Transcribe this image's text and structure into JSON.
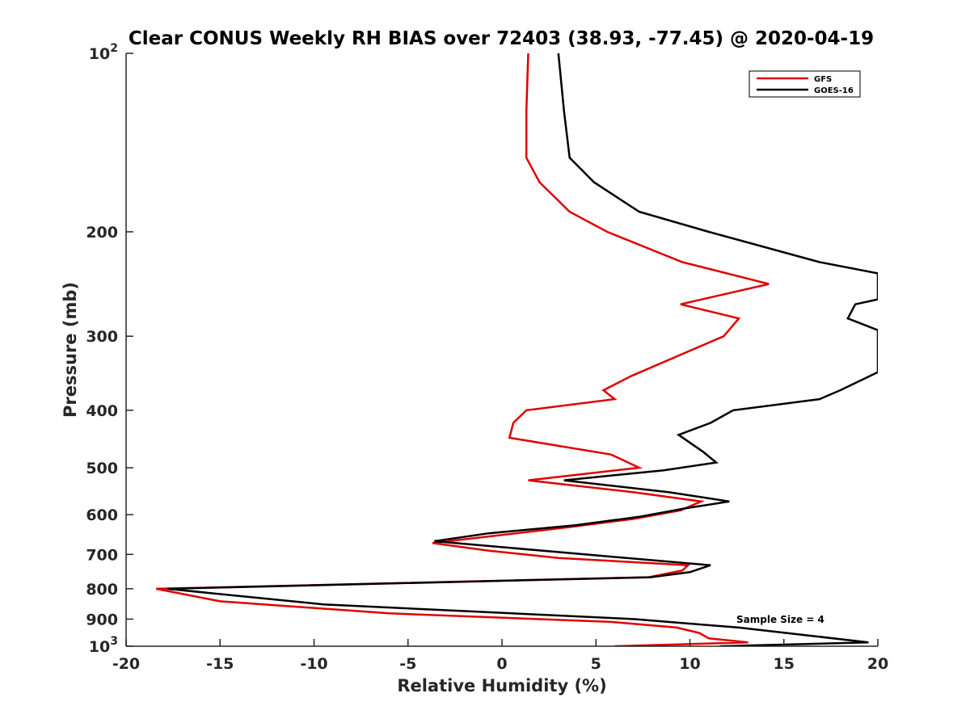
{
  "chart_data": {
    "type": "line",
    "title": "Clear CONUS Weekly RH BIAS over 72403 (38.93, -77.45) @ 2020-04-19",
    "xlabel": "Relative Humidity (%)",
    "ylabel": "Pressure (mb)",
    "xlim": [
      -20,
      20
    ],
    "ylim": [
      100,
      1000
    ],
    "y_scale": "log",
    "y_reversed": true,
    "x_ticks": [
      -20,
      -15,
      -10,
      -5,
      0,
      5,
      10,
      15,
      20
    ],
    "x_tick_labels": [
      "-20",
      "-15",
      "-10",
      "-5",
      "0",
      "5",
      "10",
      "15",
      "20"
    ],
    "y_ticks": [
      100,
      200,
      300,
      400,
      500,
      600,
      700,
      800,
      900,
      1000
    ],
    "y_tick_labels": [
      {
        "base": "10",
        "exp": "2"
      },
      {
        "base": "200",
        "exp": ""
      },
      {
        "base": "300",
        "exp": ""
      },
      {
        "base": "400",
        "exp": ""
      },
      {
        "base": "500",
        "exp": ""
      },
      {
        "base": "600",
        "exp": ""
      },
      {
        "base": "700",
        "exp": ""
      },
      {
        "base": "800",
        "exp": ""
      },
      {
        "base": "900",
        "exp": ""
      },
      {
        "base": "10",
        "exp": "3"
      }
    ],
    "grid": false,
    "legend_position": "top-right",
    "annotation": "Sample Size = 4",
    "series": [
      {
        "name": "GFS",
        "color": "#e00000",
        "points": [
          [
            1.4,
            100
          ],
          [
            1.3,
            125
          ],
          [
            1.3,
            150
          ],
          [
            2.0,
            165
          ],
          [
            3.6,
            185
          ],
          [
            5.6,
            200
          ],
          [
            9.6,
            225
          ],
          [
            14.2,
            245
          ],
          [
            9.5,
            265
          ],
          [
            12.6,
            280
          ],
          [
            11.8,
            300
          ],
          [
            6.9,
            350
          ],
          [
            5.4,
            370
          ],
          [
            6.0,
            383
          ],
          [
            1.3,
            400
          ],
          [
            0.6,
            420
          ],
          [
            0.4,
            445
          ],
          [
            5.8,
            475
          ],
          [
            7.3,
            500
          ],
          [
            1.4,
            525
          ],
          [
            7.0,
            550
          ],
          [
            10.6,
            570
          ],
          [
            9.5,
            590
          ],
          [
            7.0,
            610
          ],
          [
            3.5,
            630
          ],
          [
            -3.7,
            670
          ],
          [
            -0.7,
            690
          ],
          [
            3.0,
            710
          ],
          [
            9.9,
            730
          ],
          [
            9.6,
            745
          ],
          [
            7.8,
            765
          ],
          [
            -18.4,
            800
          ],
          [
            -15.0,
            840
          ],
          [
            -6.0,
            880
          ],
          [
            5.8,
            910
          ],
          [
            9.3,
            930
          ],
          [
            10.5,
            950
          ],
          [
            11.0,
            970
          ],
          [
            13.1,
            985
          ],
          [
            6.0,
            1000
          ]
        ]
      },
      {
        "name": "GOES-16",
        "color": "#000000",
        "points": [
          [
            3.0,
            100
          ],
          [
            3.3,
            125
          ],
          [
            3.6,
            150
          ],
          [
            4.9,
            165
          ],
          [
            7.3,
            185
          ],
          [
            11.0,
            200
          ],
          [
            16.9,
            225
          ],
          [
            20.0,
            235
          ],
          [
            20.0,
            260
          ],
          [
            18.8,
            265
          ],
          [
            18.4,
            280
          ],
          [
            20.0,
            293
          ],
          [
            20.0,
            345
          ],
          [
            18.0,
            370
          ],
          [
            16.9,
            383
          ],
          [
            12.3,
            400
          ],
          [
            11.1,
            420
          ],
          [
            9.4,
            440
          ],
          [
            10.7,
            470
          ],
          [
            11.4,
            490
          ],
          [
            8.6,
            505
          ],
          [
            3.3,
            525
          ],
          [
            8.9,
            550
          ],
          [
            12.1,
            570
          ],
          [
            9.8,
            585
          ],
          [
            7.3,
            605
          ],
          [
            3.9,
            625
          ],
          [
            -0.7,
            645
          ],
          [
            -3.6,
            665
          ],
          [
            4.4,
            700
          ],
          [
            11.1,
            730
          ],
          [
            10.0,
            750
          ],
          [
            7.9,
            765
          ],
          [
            -17.8,
            800
          ],
          [
            -9.5,
            850
          ],
          [
            7.0,
            900
          ],
          [
            12.6,
            930
          ],
          [
            16.4,
            960
          ],
          [
            19.5,
            985
          ],
          [
            11.6,
            1000
          ]
        ]
      }
    ]
  }
}
